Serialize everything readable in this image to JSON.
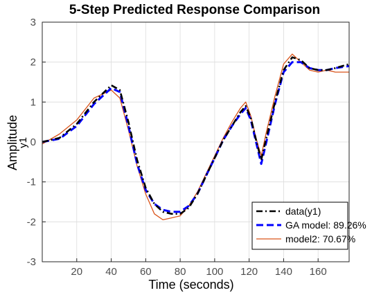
{
  "chart_data": {
    "type": "line",
    "title": "5-Step Predicted Response Comparison",
    "xlabel": "Time (seconds)",
    "ylabel": "Amplitude",
    "ylabel2": "y1",
    "xlim": [
      0,
      178
    ],
    "ylim": [
      -3,
      3
    ],
    "xticks": [
      "20",
      "40",
      "60",
      "80",
      "100",
      "120",
      "140",
      "160"
    ],
    "yticks": [
      "-3",
      "-2",
      "-1",
      "0",
      "1",
      "2",
      "3"
    ],
    "grid": true,
    "legend_position": "bottom-right",
    "x": [
      0,
      10,
      20,
      30,
      40,
      45,
      50,
      55,
      60,
      65,
      70,
      75,
      80,
      85,
      90,
      95,
      100,
      105,
      110,
      115,
      118,
      121,
      124,
      127,
      130,
      135,
      140,
      145,
      150,
      155,
      160,
      165,
      170,
      178
    ],
    "series": [
      {
        "name": "data(y1)",
        "color": "#000000",
        "dash": "dashdot",
        "values": [
          0.0,
          0.1,
          0.45,
          1.0,
          1.42,
          1.3,
          0.5,
          -0.45,
          -1.15,
          -1.55,
          -1.75,
          -1.8,
          -1.8,
          -1.65,
          -1.3,
          -0.85,
          -0.4,
          0.05,
          0.4,
          0.75,
          0.9,
          0.6,
          0.05,
          -0.45,
          0.1,
          1.0,
          1.8,
          2.12,
          2.05,
          1.85,
          1.8,
          1.8,
          1.85,
          1.95
        ]
      },
      {
        "name": "GA model: 89.26%",
        "color": "#0000ff",
        "dash": "dash",
        "values": [
          0.0,
          0.08,
          0.4,
          0.95,
          1.35,
          1.25,
          0.4,
          -0.55,
          -1.2,
          -1.55,
          -1.7,
          -1.75,
          -1.75,
          -1.6,
          -1.3,
          -0.85,
          -0.4,
          0.05,
          0.4,
          0.7,
          0.85,
          0.55,
          0.0,
          -0.55,
          0.0,
          0.95,
          1.75,
          2.0,
          2.0,
          1.85,
          1.8,
          1.8,
          1.85,
          1.9
        ]
      },
      {
        "name": "model2: 70.67%",
        "color": "#d95319",
        "dash": "solid",
        "values": [
          -0.05,
          0.2,
          0.55,
          1.1,
          1.3,
          1.1,
          0.3,
          -0.6,
          -1.3,
          -1.8,
          -1.95,
          -1.9,
          -1.85,
          -1.6,
          -1.25,
          -0.8,
          -0.35,
          0.1,
          0.5,
          0.85,
          1.0,
          0.65,
          0.1,
          -0.35,
          0.25,
          1.15,
          1.95,
          2.2,
          2.0,
          1.8,
          1.75,
          1.8,
          1.75,
          1.75
        ]
      }
    ]
  }
}
